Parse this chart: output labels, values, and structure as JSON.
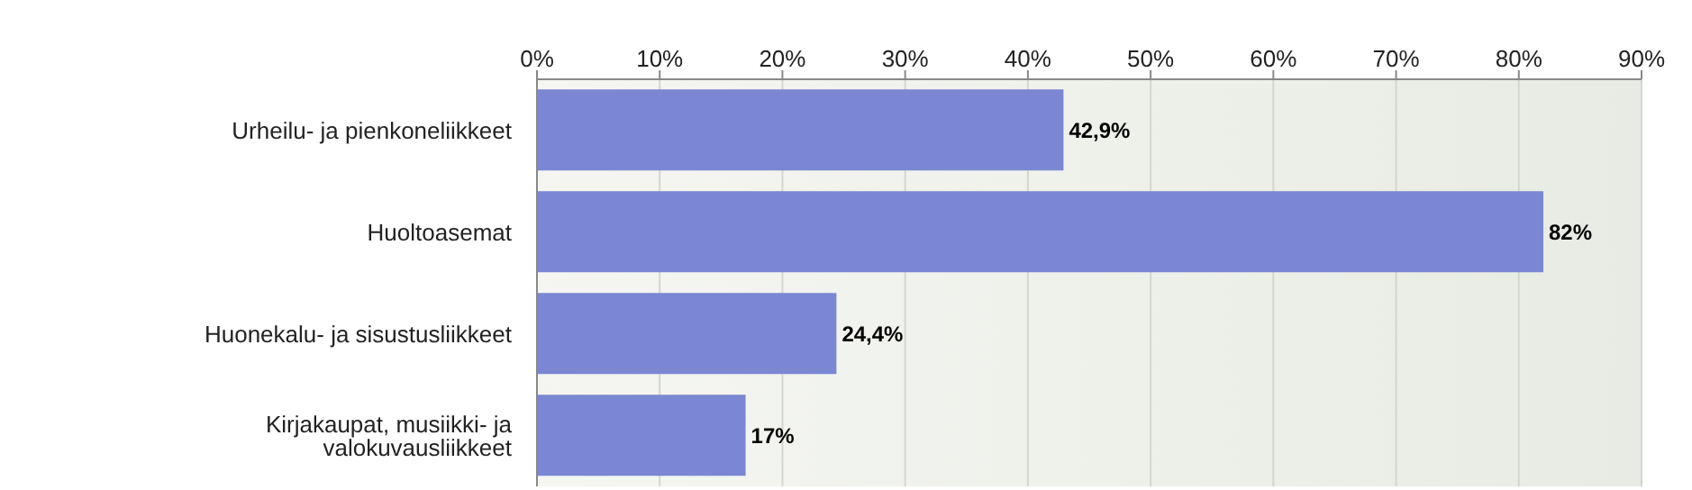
{
  "chart_data": {
    "type": "bar",
    "orientation": "horizontal",
    "categories": [
      "Urheilu- ja pienkoneliikkeet",
      "Huoltoasemat",
      "Huonekalu- ja sisustusliikkeet",
      "Kirjakaupat, musiikki- ja valokuvausliikkeet"
    ],
    "values": [
      42.9,
      82,
      24.4,
      17
    ],
    "value_labels": [
      "42,9%",
      "82%",
      "24,4%",
      "17%"
    ],
    "color": "#7b87d2",
    "xlim": [
      0,
      90
    ],
    "xticks": [
      {
        "value": 0,
        "label": "0%"
      },
      {
        "value": 10,
        "label": "10%"
      },
      {
        "value": 20,
        "label": "20%"
      },
      {
        "value": 30,
        "label": "30%"
      },
      {
        "value": 40,
        "label": "40%"
      },
      {
        "value": 50,
        "label": "50%"
      },
      {
        "value": 60,
        "label": "60%"
      },
      {
        "value": 70,
        "label": "70%"
      },
      {
        "value": 80,
        "label": "80%"
      },
      {
        "value": 90,
        "label": "90%"
      }
    ],
    "grid": "x"
  }
}
